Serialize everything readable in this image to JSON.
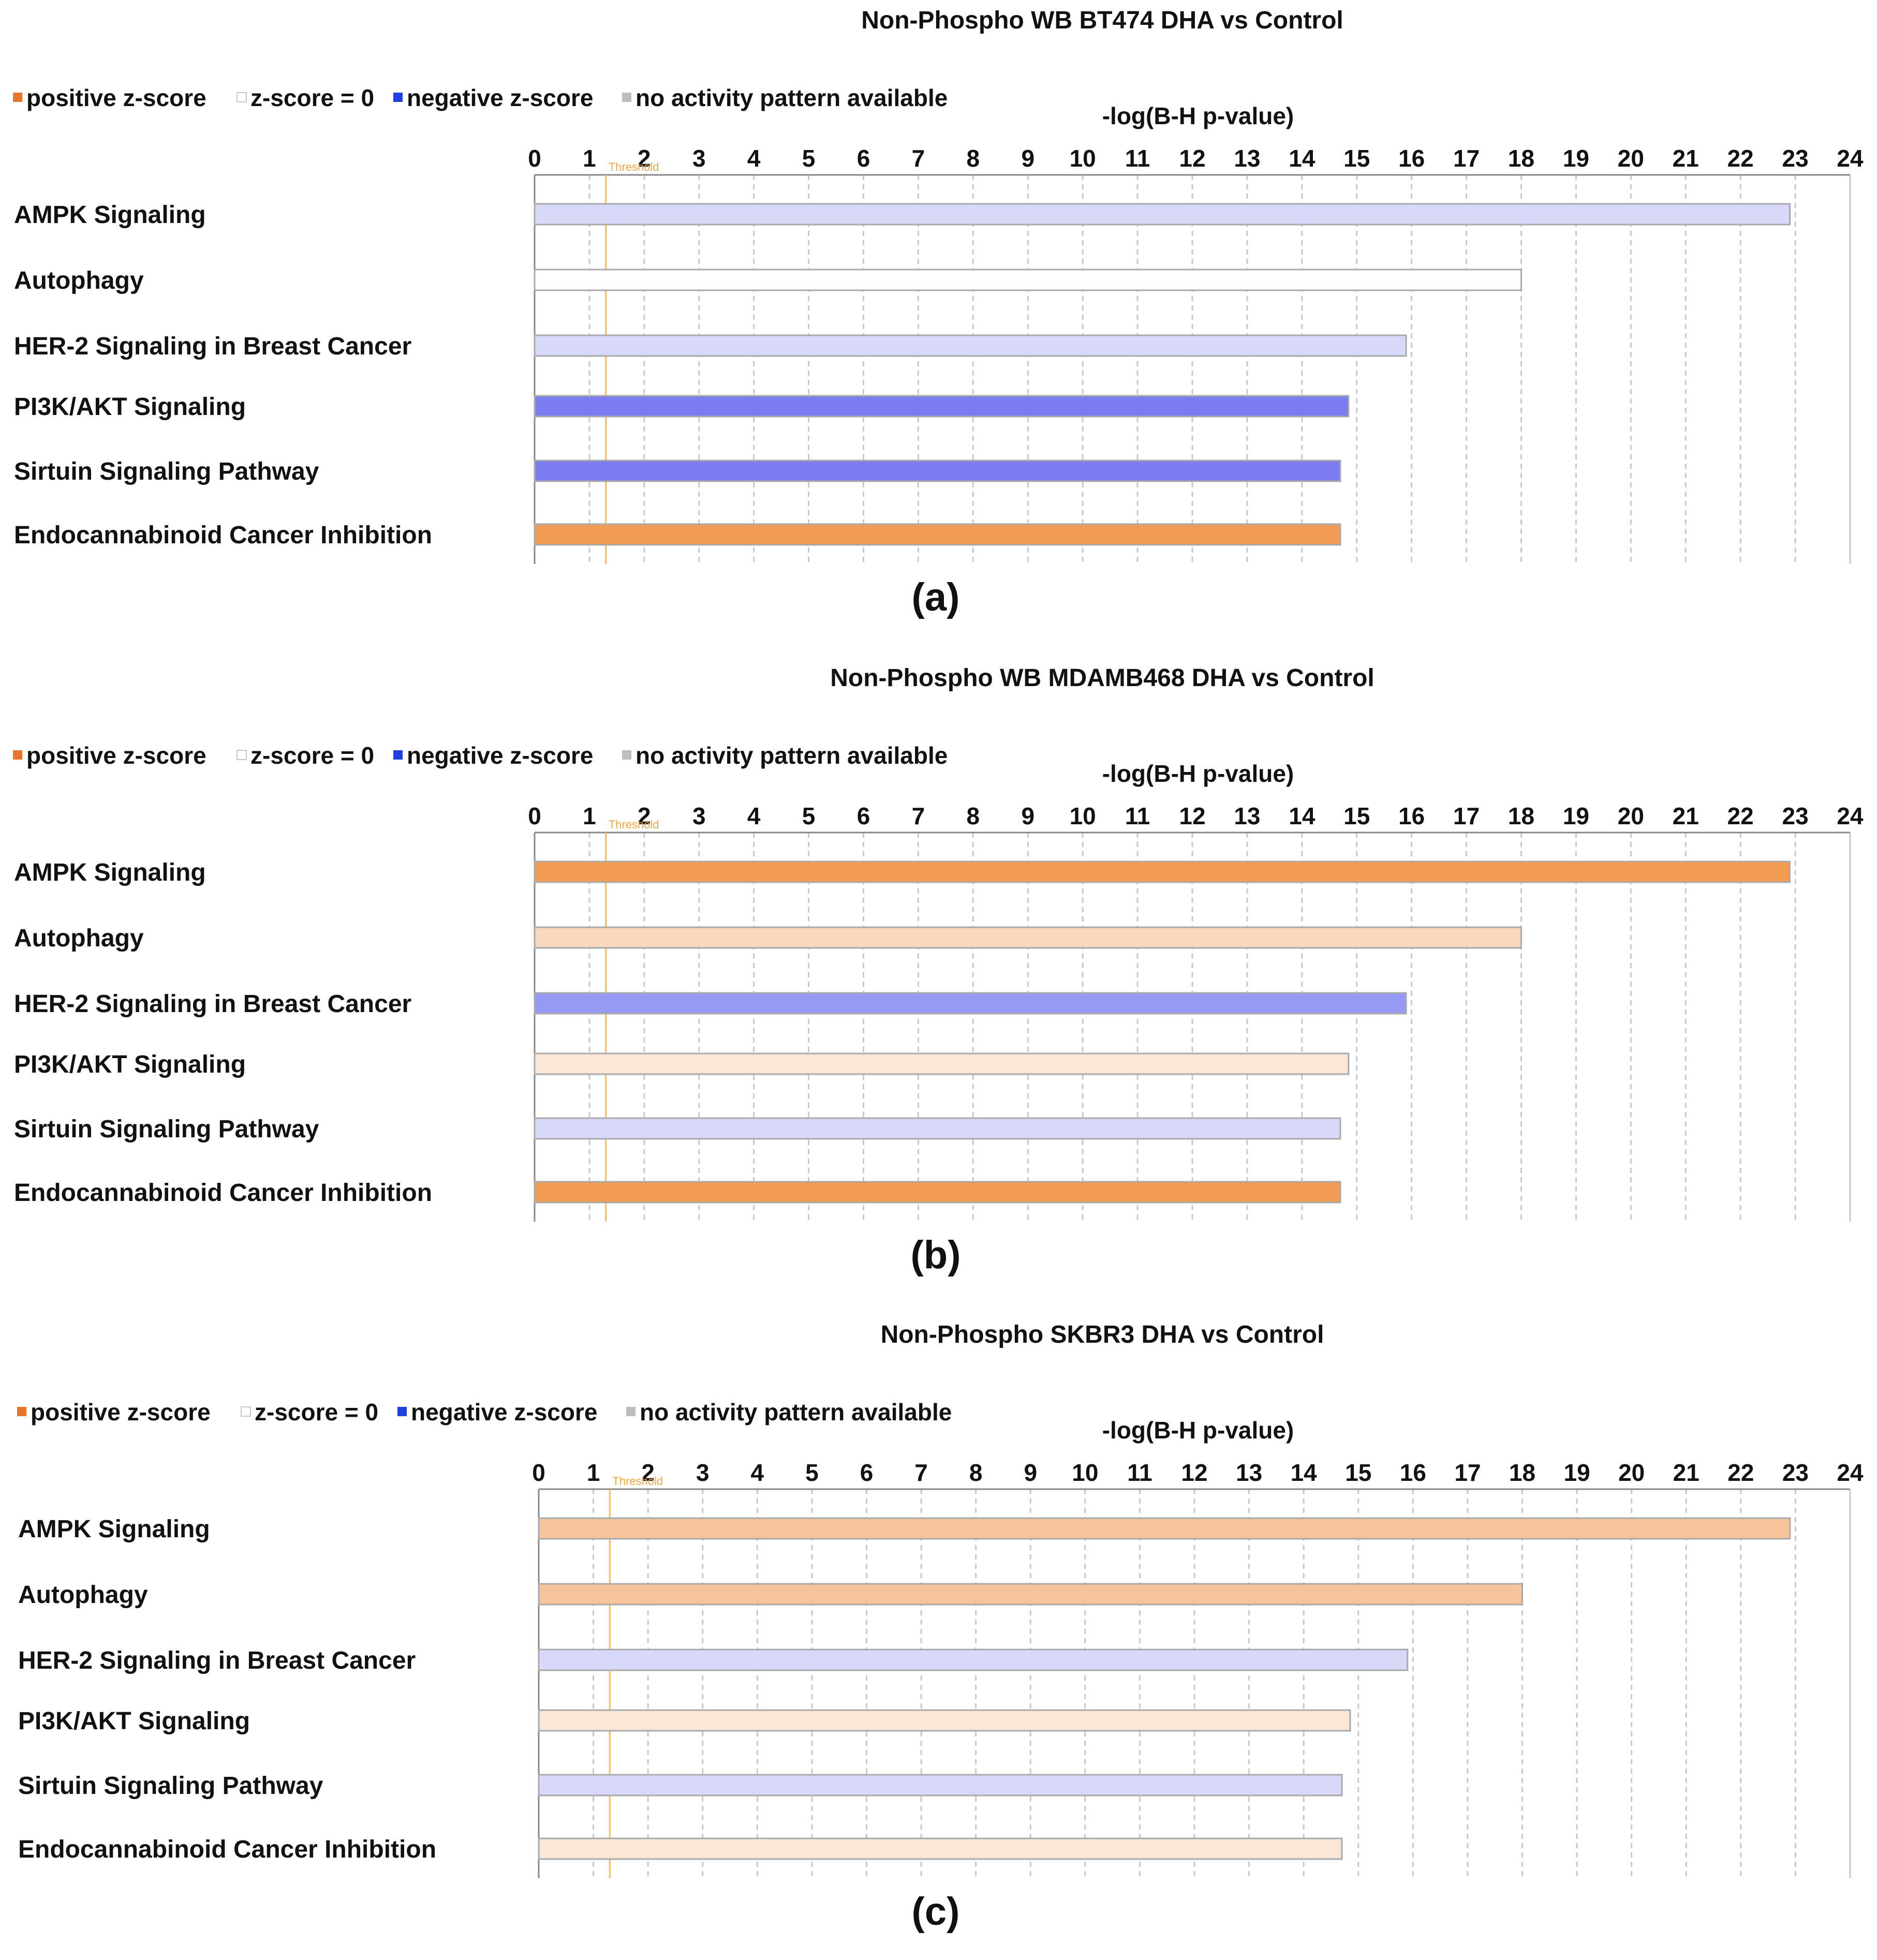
{
  "legend": {
    "positive": "positive z-score",
    "zero": "z-score = 0",
    "negative": "negative z-score",
    "no_activity": "no activity pattern available"
  },
  "colors": {
    "positive_marker": "#e8752a",
    "negative_marker": "#1f3fe0",
    "zero_marker": "#ffffff",
    "no_activity_marker": "#bdbdbd",
    "threshold_line": "#f7b955",
    "threshold_text": "#f0a640",
    "gridline": "#c8c8c8",
    "bar_border": "#a9a9a9",
    "fills": {
      "neg_light": "#d7d9fa",
      "neg_strong": "#7a7cf0",
      "neg_medium": "#9599f3",
      "zero": "#ffffff",
      "pos_strong": "#f29b52",
      "pos_medium": "#f6c49b",
      "pos_light": "#f8d8bd",
      "pos_pale": "#fbe6d6"
    }
  },
  "chart_data": [
    {
      "type": "bar",
      "orientation": "horizontal",
      "title": "Non-Phospho WB BT474 DHA vs Control",
      "xlabel": "-log(B-H p-value)",
      "panel_label": "(a)",
      "xlim": [
        0,
        24
      ],
      "ticks": [
        0,
        1,
        2,
        3,
        4,
        5,
        6,
        7,
        8,
        9,
        10,
        11,
        12,
        13,
        14,
        15,
        16,
        17,
        18,
        19,
        20,
        21,
        22,
        23,
        24
      ],
      "threshold": 1.3,
      "threshold_label": "Threshold",
      "categories": [
        "AMPK Signaling",
        "Autophagy",
        "HER-2 Signaling in Breast Cancer",
        "PI3K/AKT Signaling",
        "Sirtuin Signaling Pathway",
        "Endocannabinoid Cancer Inhibition"
      ],
      "values": [
        22.9,
        18.0,
        15.9,
        14.85,
        14.7,
        14.7
      ],
      "fills": [
        "neg_light",
        "zero",
        "neg_light",
        "neg_strong",
        "neg_strong",
        "pos_strong"
      ]
    },
    {
      "type": "bar",
      "orientation": "horizontal",
      "title": "Non-Phospho WB MDAMB468 DHA vs Control",
      "xlabel": "-log(B-H p-value)",
      "panel_label": "(b)",
      "xlim": [
        0,
        24
      ],
      "ticks": [
        0,
        1,
        2,
        3,
        4,
        5,
        6,
        7,
        8,
        9,
        10,
        11,
        12,
        13,
        14,
        15,
        16,
        17,
        18,
        19,
        20,
        21,
        22,
        23,
        24
      ],
      "threshold": 1.3,
      "threshold_label": "Threshold",
      "categories": [
        "AMPK Signaling",
        "Autophagy",
        "HER-2 Signaling in Breast Cancer",
        "PI3K/AKT Signaling",
        "Sirtuin Signaling Pathway",
        "Endocannabinoid Cancer Inhibition"
      ],
      "values": [
        22.9,
        18.0,
        15.9,
        14.85,
        14.7,
        14.7
      ],
      "fills": [
        "pos_strong",
        "pos_light",
        "neg_medium",
        "pos_pale",
        "neg_light",
        "pos_strong"
      ]
    },
    {
      "type": "bar",
      "orientation": "horizontal",
      "title": "Non-Phospho SKBR3 DHA vs Control",
      "xlabel": "-log(B-H p-value)",
      "panel_label": "(c)",
      "xlim": [
        0,
        24
      ],
      "ticks": [
        0,
        1,
        2,
        3,
        4,
        5,
        6,
        7,
        8,
        9,
        10,
        11,
        12,
        13,
        14,
        15,
        16,
        17,
        18,
        19,
        20,
        21,
        22,
        23,
        24
      ],
      "threshold": 1.3,
      "threshold_label": "Threshold",
      "categories": [
        "AMPK Signaling",
        "Autophagy",
        "HER-2 Signaling in Breast Cancer",
        "PI3K/AKT Signaling",
        "Sirtuin Signaling Pathway",
        "Endocannabinoid Cancer Inhibition"
      ],
      "values": [
        22.9,
        18.0,
        15.9,
        14.85,
        14.7,
        14.7
      ],
      "fills": [
        "pos_medium",
        "pos_medium",
        "neg_light",
        "pos_pale",
        "neg_light",
        "pos_pale"
      ]
    }
  ]
}
